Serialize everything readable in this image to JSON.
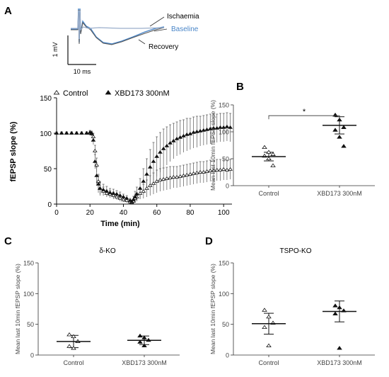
{
  "panel_labels": {
    "A": "A",
    "B": "B",
    "C": "C",
    "D": "D"
  },
  "trace_inset": {
    "labels": {
      "ischaemia": "Ischaemia",
      "baseline": "Baseline",
      "recovery": "Recovery"
    },
    "scale_v": "1 mV",
    "scale_t": "10 ms",
    "colors": {
      "ischaemia": "#9aaecb",
      "baseline": "#4a86c8",
      "recovery": "#555555"
    }
  },
  "chart_data": [
    {
      "type": "line",
      "id": "timecourse",
      "xlabel": "Time (min)",
      "ylabel": "fEPSP slope (%)",
      "xlim": [
        0,
        105
      ],
      "ylim": [
        0,
        150
      ],
      "xticks": [
        0,
        20,
        40,
        60,
        80,
        100
      ],
      "yticks": [
        0,
        50,
        100,
        150
      ],
      "legend_position": "top",
      "series": [
        {
          "name": "Control",
          "marker": "open-triangle",
          "x": [
            0,
            3,
            6,
            9,
            12,
            15,
            18,
            20,
            21,
            22,
            23,
            24,
            25,
            26,
            28,
            30,
            32,
            34,
            36,
            38,
            40,
            42,
            44,
            45,
            46,
            47,
            48,
            50,
            52,
            54,
            56,
            58,
            60,
            62,
            64,
            66,
            68,
            70,
            72,
            74,
            76,
            78,
            80,
            82,
            84,
            86,
            88,
            90,
            92,
            94,
            96,
            98,
            100,
            102,
            104
          ],
          "y": [
            100,
            100,
            100,
            100,
            100,
            100,
            100,
            100,
            100,
            95,
            75,
            55,
            32,
            22,
            18,
            15,
            14,
            12,
            10,
            8,
            6,
            5,
            3,
            2,
            4,
            8,
            10,
            15,
            18,
            22,
            26,
            29,
            32,
            34,
            35,
            36,
            37,
            38,
            38,
            39,
            40,
            41,
            42,
            43,
            44,
            45,
            45,
            46,
            47,
            47,
            48,
            48,
            49,
            48,
            49
          ],
          "error": [
            2,
            2,
            2,
            2,
            2,
            2,
            2,
            3,
            3,
            5,
            8,
            10,
            10,
            8,
            6,
            5,
            5,
            5,
            4,
            4,
            3,
            3,
            2,
            2,
            3,
            5,
            6,
            8,
            10,
            12,
            14,
            15,
            16,
            16,
            16,
            16,
            16,
            15,
            15,
            15,
            15,
            15,
            15,
            15,
            15,
            15,
            15,
            15,
            15,
            15,
            15,
            15,
            15,
            14,
            14
          ]
        },
        {
          "name": "XBD173 300nM",
          "marker": "filled-triangle",
          "x": [
            0,
            3,
            6,
            9,
            12,
            15,
            18,
            20,
            21,
            22,
            23,
            24,
            25,
            26,
            28,
            30,
            32,
            34,
            36,
            38,
            40,
            42,
            44,
            45,
            46,
            47,
            48,
            50,
            52,
            54,
            56,
            58,
            60,
            62,
            64,
            66,
            68,
            70,
            72,
            74,
            76,
            78,
            80,
            82,
            84,
            86,
            88,
            90,
            92,
            94,
            96,
            98,
            100,
            102,
            104
          ],
          "y": [
            100,
            100,
            100,
            100,
            100,
            100,
            100,
            101,
            99,
            90,
            60,
            40,
            28,
            22,
            20,
            18,
            16,
            15,
            14,
            12,
            10,
            8,
            5,
            3,
            6,
            10,
            14,
            22,
            32,
            42,
            52,
            60,
            67,
            73,
            78,
            82,
            86,
            89,
            92,
            94,
            96,
            98,
            99,
            101,
            102,
            103,
            104,
            105,
            106,
            107,
            107,
            108,
            108,
            109,
            108
          ],
          "error": [
            2,
            2,
            2,
            2,
            2,
            2,
            2,
            3,
            3,
            6,
            10,
            12,
            12,
            10,
            8,
            7,
            6,
            6,
            5,
            5,
            4,
            4,
            3,
            3,
            5,
            8,
            10,
            14,
            18,
            22,
            25,
            27,
            28,
            28,
            28,
            27,
            26,
            25,
            24,
            24,
            23,
            23,
            22,
            22,
            22,
            21,
            21,
            21,
            21,
            20,
            20,
            20,
            20,
            20,
            20
          ]
        }
      ]
    },
    {
      "type": "scatter",
      "id": "wt",
      "ylabel": "Mean last 10min fEPSP slope (%)",
      "ylim": [
        0,
        150
      ],
      "yticks": [
        0,
        50,
        100,
        150
      ],
      "categories": [
        "Control",
        "XBD173 300nM"
      ],
      "annotation": "*",
      "groups": [
        {
          "category": "Control",
          "marker": "open-triangle",
          "mean": 54,
          "error": 8,
          "points": [
            71,
            62,
            58,
            55,
            50,
            37
          ]
        },
        {
          "category": "XBD173 300nM",
          "marker": "filled-triangle",
          "mean": 112,
          "error": 16,
          "points": [
            131,
            122,
            108,
            103,
            90,
            73
          ]
        }
      ]
    },
    {
      "type": "scatter",
      "id": "delta_ko",
      "title": "δ-KO",
      "ylabel": "Mean last 10min fEPSP slope (%)",
      "ylim": [
        0,
        150
      ],
      "yticks": [
        0,
        50,
        100,
        150
      ],
      "categories": [
        "Control",
        "XBD173 300nM"
      ],
      "groups": [
        {
          "category": "Control",
          "marker": "open-triangle",
          "mean": 22,
          "error": 10,
          "points": [
            33,
            30,
            22,
            14,
            11
          ]
        },
        {
          "category": "XBD173 300nM",
          "marker": "filled-triangle",
          "mean": 24,
          "error": 7,
          "points": [
            31,
            28,
            24,
            21,
            15
          ]
        }
      ]
    },
    {
      "type": "scatter",
      "id": "tspo_ko",
      "title": "TSPO-KO",
      "ylabel": "Mean last 10min fEPSP slope (%)",
      "ylim": [
        0,
        150
      ],
      "yticks": [
        0,
        50,
        100,
        150
      ],
      "categories": [
        "Control",
        "XBD173 300nM"
      ],
      "groups": [
        {
          "category": "Control",
          "marker": "open-triangle",
          "mean": 51,
          "error": 17,
          "points": [
            73,
            62,
            52,
            45,
            15
          ]
        },
        {
          "category": "XBD173 300nM",
          "marker": "filled-triangle",
          "mean": 71,
          "error": 17,
          "points": [
            80,
            77,
            72,
            67,
            11
          ]
        }
      ]
    }
  ]
}
